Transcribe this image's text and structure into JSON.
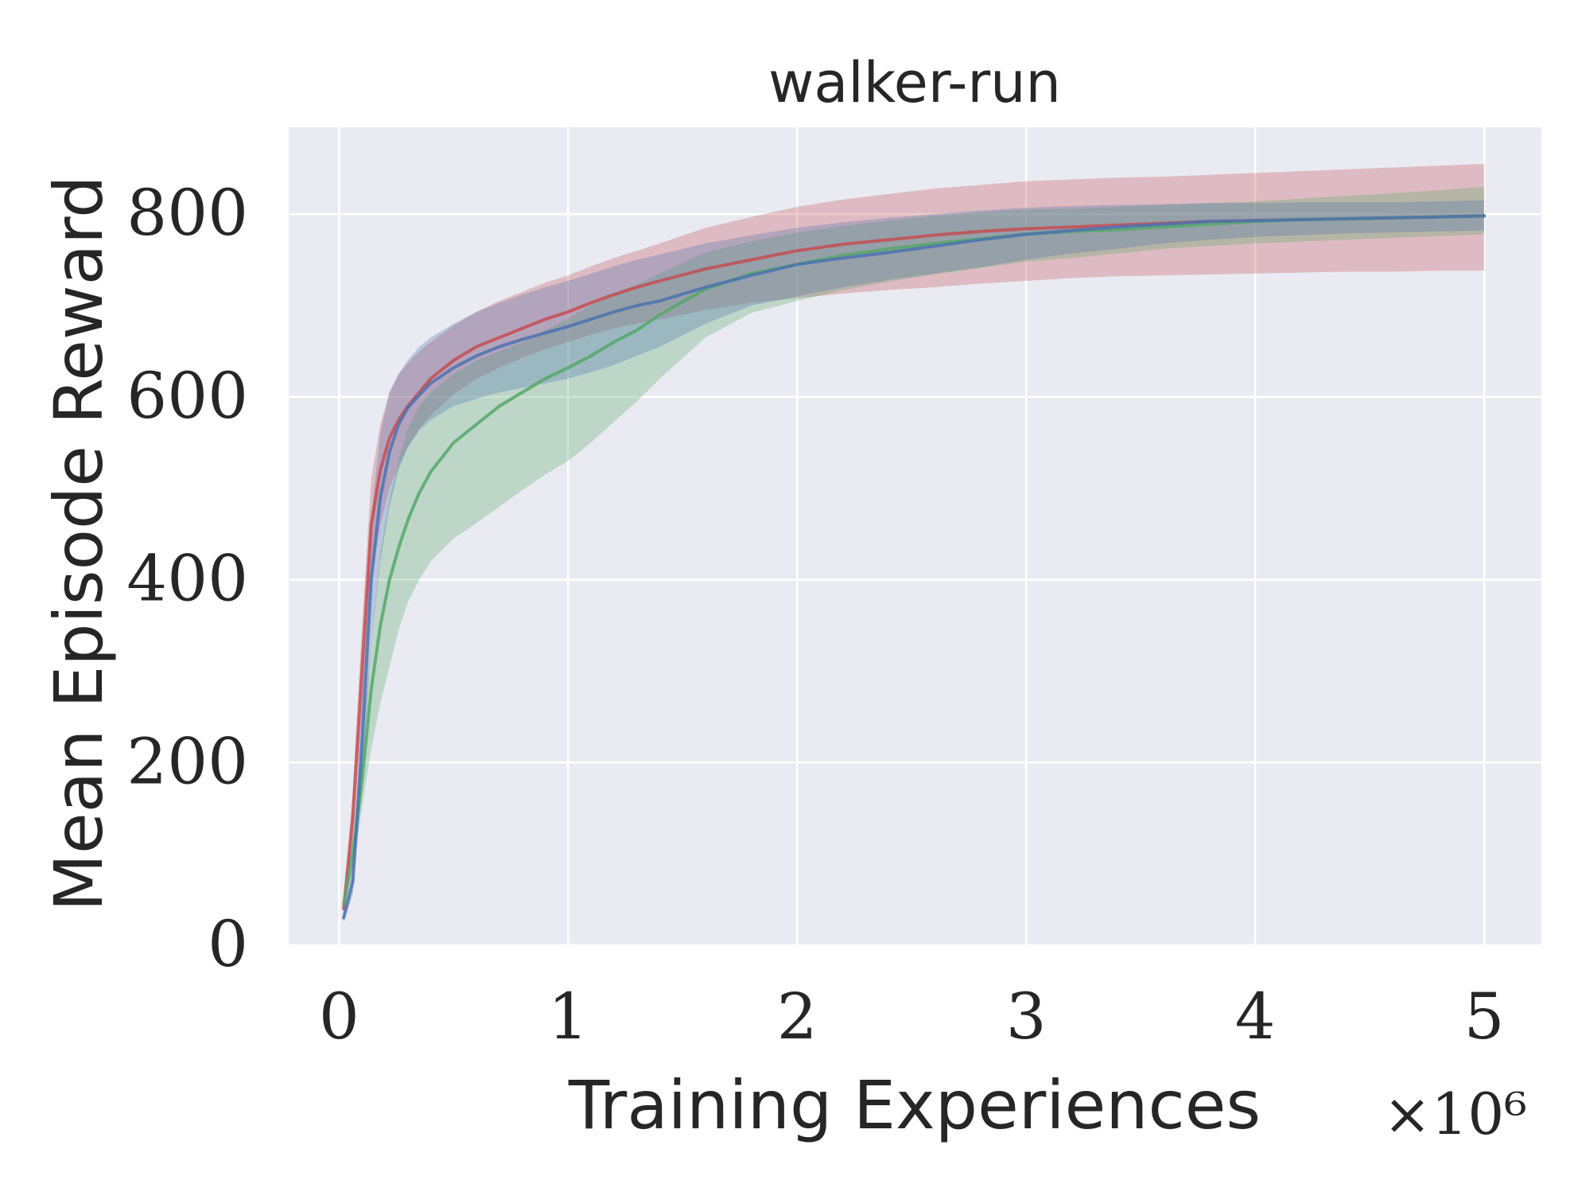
{
  "chart_data": {
    "type": "line",
    "title": "walker-run",
    "xlabel": "Training Experiences",
    "ylabel": "Mean Episode Reward",
    "x_scale_label": "×10⁶",
    "x_unit_multiplier": 1000000,
    "xlim": [
      -0.22,
      5.25
    ],
    "ylim": [
      0,
      895
    ],
    "xticks": [
      0,
      1,
      2,
      3,
      4,
      5
    ],
    "xtick_labels": [
      "0",
      "1",
      "2",
      "3",
      "4",
      "5"
    ],
    "yticks": [
      0,
      200,
      400,
      600,
      800
    ],
    "ytick_labels": [
      "0",
      "200",
      "400",
      "600",
      "800"
    ],
    "grid": true,
    "legend": "none",
    "colors": {
      "background": "#EAEAF2",
      "grid": "#FFFFFF",
      "text": "#262626"
    },
    "series": [
      {
        "color": "#C44E52",
        "x": [
          0.02,
          0.06,
          0.1,
          0.14,
          0.18,
          0.22,
          0.26,
          0.3,
          0.35,
          0.4,
          0.5,
          0.6,
          0.7,
          0.8,
          0.9,
          1.0,
          1.1,
          1.2,
          1.3,
          1.4,
          1.6,
          1.8,
          2.0,
          2.2,
          2.4,
          2.6,
          2.8,
          3.0,
          3.2,
          3.4,
          3.6,
          3.8,
          4.0,
          4.2,
          4.4,
          4.6,
          4.8,
          5.0
        ],
        "y": [
          40,
          140,
          300,
          460,
          520,
          555,
          575,
          590,
          605,
          620,
          640,
          655,
          665,
          675,
          685,
          693,
          703,
          712,
          720,
          727,
          740,
          750,
          760,
          767,
          772,
          777,
          781,
          784,
          786,
          788,
          790,
          792,
          793,
          794,
          795,
          796,
          797,
          798
        ],
        "lower": [
          30,
          110,
          250,
          400,
          460,
          500,
          525,
          545,
          565,
          580,
          603,
          620,
          632,
          643,
          652,
          660,
          668,
          675,
          680,
          685,
          695,
          703,
          708,
          713,
          717,
          720,
          724,
          727,
          730,
          732,
          733,
          734,
          735,
          736,
          737,
          737,
          738,
          738
        ],
        "upper": [
          50,
          170,
          350,
          510,
          570,
          605,
          625,
          637,
          650,
          660,
          678,
          693,
          705,
          715,
          725,
          733,
          743,
          752,
          760,
          768,
          785,
          797,
          808,
          816,
          822,
          828,
          832,
          836,
          838,
          840,
          841,
          843,
          845,
          847,
          849,
          851,
          853,
          855
        ]
      },
      {
        "color": "#55A868",
        "x": [
          0.02,
          0.06,
          0.1,
          0.14,
          0.18,
          0.22,
          0.26,
          0.3,
          0.35,
          0.4,
          0.5,
          0.6,
          0.7,
          0.8,
          0.9,
          1.0,
          1.1,
          1.2,
          1.3,
          1.4,
          1.6,
          1.8,
          2.0,
          2.2,
          2.4,
          2.6,
          2.8,
          3.0,
          3.2,
          3.4,
          3.6,
          3.8,
          4.0,
          4.2,
          4.4,
          4.6,
          4.8,
          5.0
        ],
        "y": [
          45,
          100,
          180,
          280,
          350,
          400,
          435,
          465,
          495,
          518,
          550,
          570,
          590,
          605,
          620,
          632,
          645,
          660,
          673,
          690,
          718,
          735,
          745,
          755,
          762,
          768,
          773,
          778,
          781,
          783,
          786,
          789,
          792,
          794,
          795,
          796,
          797,
          798
        ],
        "lower": [
          35,
          85,
          150,
          215,
          265,
          305,
          345,
          375,
          400,
          420,
          445,
          462,
          480,
          498,
          515,
          530,
          550,
          573,
          595,
          620,
          665,
          692,
          705,
          717,
          726,
          734,
          741,
          748,
          752,
          757,
          762,
          765,
          768,
          770,
          772,
          774,
          776,
          778
        ],
        "upper": [
          55,
          120,
          220,
          330,
          430,
          490,
          530,
          565,
          590,
          605,
          625,
          640,
          650,
          660,
          673,
          686,
          700,
          713,
          723,
          735,
          758,
          770,
          780,
          787,
          793,
          798,
          802,
          805,
          806,
          808,
          810,
          812,
          814,
          817,
          820,
          823,
          826,
          830
        ]
      },
      {
        "color": "#4C72B0",
        "x": [
          0.02,
          0.06,
          0.1,
          0.14,
          0.18,
          0.22,
          0.26,
          0.3,
          0.35,
          0.4,
          0.5,
          0.6,
          0.7,
          0.8,
          0.9,
          1.0,
          1.1,
          1.2,
          1.3,
          1.4,
          1.6,
          1.8,
          2.0,
          2.2,
          2.4,
          2.6,
          2.8,
          3.0,
          3.2,
          3.4,
          3.6,
          3.8,
          4.0,
          4.2,
          4.4,
          4.6,
          4.8,
          5.0
        ],
        "y": [
          30,
          70,
          220,
          400,
          490,
          540,
          570,
          588,
          602,
          615,
          632,
          645,
          655,
          663,
          670,
          677,
          685,
          693,
          700,
          705,
          720,
          733,
          745,
          752,
          758,
          765,
          772,
          778,
          782,
          786,
          789,
          792,
          793,
          794,
          795,
          796,
          797,
          798
        ],
        "lower": [
          25,
          55,
          170,
          330,
          420,
          480,
          520,
          545,
          563,
          575,
          590,
          598,
          605,
          610,
          615,
          620,
          627,
          635,
          645,
          655,
          680,
          700,
          710,
          720,
          728,
          735,
          742,
          750,
          757,
          762,
          768,
          772,
          775,
          777,
          779,
          780,
          781,
          782
        ],
        "upper": [
          35,
          90,
          270,
          470,
          560,
          605,
          625,
          640,
          655,
          665,
          680,
          693,
          703,
          712,
          720,
          727,
          735,
          743,
          750,
          756,
          768,
          777,
          785,
          791,
          796,
          800,
          804,
          807,
          809,
          810,
          811,
          812,
          812,
          813,
          813,
          813,
          814,
          815
        ]
      }
    ]
  }
}
